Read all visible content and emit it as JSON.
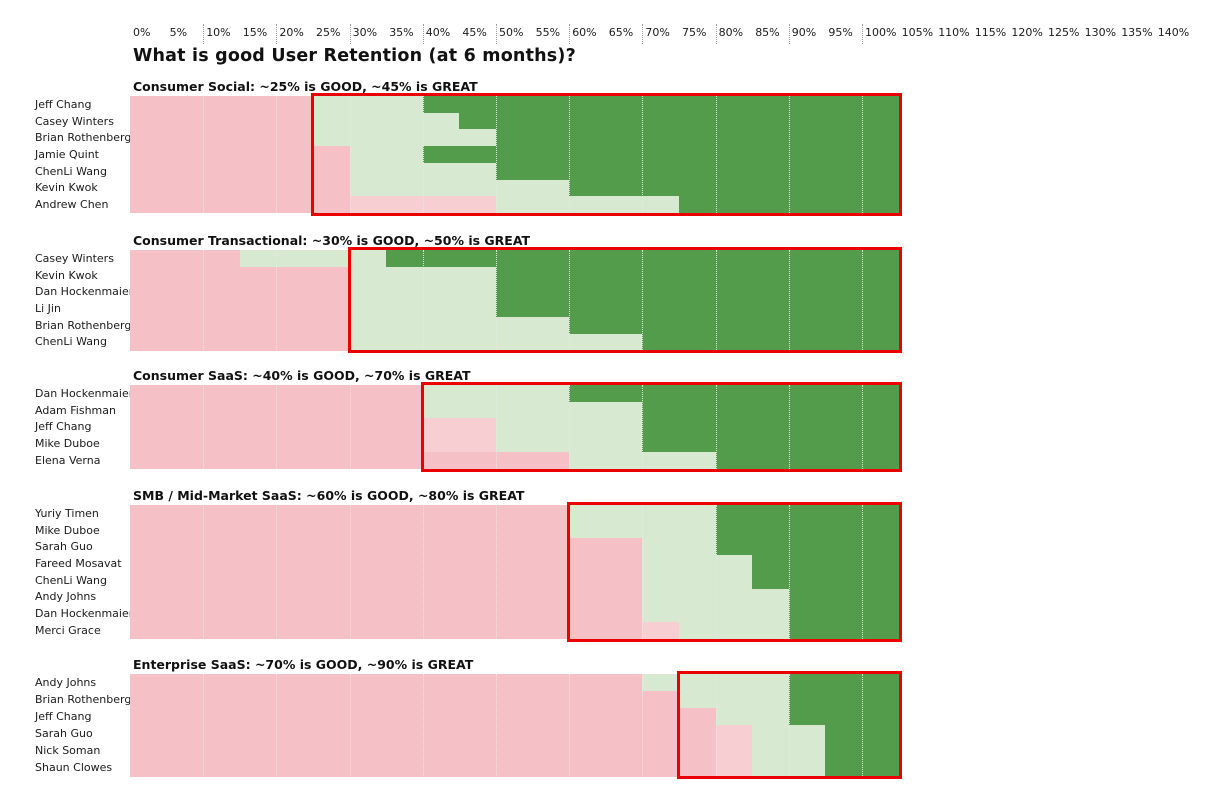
{
  "title": "What is good User Retention (at 6 months)?",
  "colors": {
    "pink": "#f5c0c6",
    "pink_light": "#f7cfd3",
    "good_green": "#d8e9d2",
    "great_green": "#539c4b",
    "highlight_red": "#eb0000",
    "text": "#1b1b1b"
  },
  "axis": {
    "tick_labels": [
      "0%",
      "5%",
      "10%",
      "15%",
      "20%",
      "25%",
      "30%",
      "35%",
      "40%",
      "45%",
      "50%",
      "55%",
      "60%",
      "65%",
      "70%",
      "75%",
      "80%",
      "85%",
      "90%",
      "95%",
      "100%",
      "105%",
      "110%",
      "115%",
      "120%",
      "125%",
      "130%",
      "135%",
      "140%"
    ],
    "tick_step_pct": 5,
    "gridline_pcts": [
      10,
      20,
      30,
      40,
      50,
      60,
      70,
      80,
      90,
      100
    ]
  },
  "chart_data": {
    "type": "bar",
    "orientation": "horizontal-stacked",
    "title": "What is good User Retention (at 6 months)?",
    "x_axis": {
      "min": 0,
      "max": 140,
      "unit": "%",
      "tick_step": 5,
      "grid_step": 10
    },
    "bar_extent_pct": 105,
    "segment_legend": {
      "pink": "below good retention",
      "pink_light": "below good retention (lighter shade)",
      "good": "good retention range (light green)",
      "great": "great retention (dark green)"
    },
    "groups": [
      {
        "label": "Consumer Social: ~25% is GOOD, ~45% is GREAT",
        "highlight_box": {
          "from_pct": 25,
          "to_pct": 105
        },
        "rows": [
          {
            "name": "Jeff Chang",
            "good_pct": 25,
            "great_pct": 40,
            "segments": [
              [
                "pink",
                0,
                25
              ],
              [
                "good",
                25,
                40
              ],
              [
                "great",
                40,
                105
              ]
            ]
          },
          {
            "name": "Casey Winters",
            "good_pct": 25,
            "great_pct": 45,
            "segments": [
              [
                "pink",
                0,
                25
              ],
              [
                "good",
                25,
                45
              ],
              [
                "great",
                45,
                105
              ]
            ]
          },
          {
            "name": "Brian Rothenberg",
            "good_pct": 25,
            "great_pct": 50,
            "segments": [
              [
                "pink",
                0,
                25
              ],
              [
                "good",
                25,
                50
              ],
              [
                "great",
                50,
                105
              ]
            ]
          },
          {
            "name": "Jamie Quint",
            "good_pct": 30,
            "great_pct": 40,
            "segments": [
              [
                "pink",
                0,
                30
              ],
              [
                "good",
                30,
                40
              ],
              [
                "great",
                40,
                105
              ]
            ]
          },
          {
            "name": "ChenLi Wang",
            "good_pct": 30,
            "great_pct": 50,
            "segments": [
              [
                "pink",
                0,
                30
              ],
              [
                "good",
                30,
                50
              ],
              [
                "great",
                50,
                105
              ]
            ]
          },
          {
            "name": "Kevin Kwok",
            "good_pct": 30,
            "great_pct": 60,
            "segments": [
              [
                "pink",
                0,
                30
              ],
              [
                "good",
                30,
                60
              ],
              [
                "great",
                60,
                105
              ]
            ]
          },
          {
            "name": "Andrew Chen",
            "good_pct": 50,
            "great_pct": 75,
            "segments": [
              [
                "pink",
                0,
                30
              ],
              [
                "pink_light",
                30,
                50
              ],
              [
                "good",
                50,
                75
              ],
              [
                "great",
                75,
                105
              ]
            ]
          }
        ]
      },
      {
        "label": "Consumer Transactional: ~30% is GOOD, ~50% is GREAT",
        "highlight_box": {
          "from_pct": 30,
          "to_pct": 105
        },
        "rows": [
          {
            "name": "Casey Winters",
            "good_pct": 15,
            "great_pct": 35,
            "segments": [
              [
                "pink",
                0,
                15
              ],
              [
                "good",
                15,
                35
              ],
              [
                "great",
                35,
                105
              ]
            ]
          },
          {
            "name": "Kevin Kwok",
            "good_pct": 30,
            "great_pct": 50,
            "segments": [
              [
                "pink",
                0,
                30
              ],
              [
                "good",
                30,
                50
              ],
              [
                "great",
                50,
                105
              ]
            ]
          },
          {
            "name": "Dan Hockenmaier",
            "good_pct": 30,
            "great_pct": 50,
            "segments": [
              [
                "pink",
                0,
                30
              ],
              [
                "good",
                30,
                50
              ],
              [
                "great",
                50,
                105
              ]
            ]
          },
          {
            "name": "Li Jin",
            "good_pct": 30,
            "great_pct": 50,
            "segments": [
              [
                "pink",
                0,
                30
              ],
              [
                "good",
                30,
                50
              ],
              [
                "great",
                50,
                105
              ]
            ]
          },
          {
            "name": "Brian Rothenberg",
            "good_pct": 30,
            "great_pct": 60,
            "segments": [
              [
                "pink",
                0,
                30
              ],
              [
                "good",
                30,
                60
              ],
              [
                "great",
                60,
                105
              ]
            ]
          },
          {
            "name": "ChenLi Wang",
            "good_pct": 30,
            "great_pct": 70,
            "segments": [
              [
                "pink",
                0,
                30
              ],
              [
                "good",
                30,
                70
              ],
              [
                "great",
                70,
                105
              ]
            ]
          }
        ]
      },
      {
        "label": "Consumer SaaS: ~40% is GOOD, ~70% is GREAT",
        "highlight_box": {
          "from_pct": 40,
          "to_pct": 105
        },
        "rows": [
          {
            "name": "Dan Hockenmaier",
            "good_pct": 40,
            "great_pct": 60,
            "segments": [
              [
                "pink",
                0,
                40
              ],
              [
                "good",
                40,
                60
              ],
              [
                "great",
                60,
                105
              ]
            ]
          },
          {
            "name": "Adam Fishman",
            "good_pct": 40,
            "great_pct": 70,
            "segments": [
              [
                "pink",
                0,
                40
              ],
              [
                "good",
                40,
                70
              ],
              [
                "great",
                70,
                105
              ]
            ]
          },
          {
            "name": "Jeff Chang",
            "good_pct": 50,
            "great_pct": 70,
            "segments": [
              [
                "pink",
                0,
                40
              ],
              [
                "pink_light",
                40,
                50
              ],
              [
                "good",
                50,
                70
              ],
              [
                "great",
                70,
                105
              ]
            ]
          },
          {
            "name": "Mike Duboe",
            "good_pct": 50,
            "great_pct": 70,
            "segments": [
              [
                "pink",
                0,
                40
              ],
              [
                "pink_light",
                40,
                50
              ],
              [
                "good",
                50,
                70
              ],
              [
                "great",
                70,
                105
              ]
            ]
          },
          {
            "name": "Elena Verna",
            "good_pct": 60,
            "great_pct": 80,
            "segments": [
              [
                "pink",
                0,
                60
              ],
              [
                "good",
                60,
                80
              ],
              [
                "great",
                80,
                105
              ]
            ]
          }
        ]
      },
      {
        "label": "SMB / Mid-Market SaaS: ~60% is GOOD, ~80% is GREAT",
        "highlight_box": {
          "from_pct": 60,
          "to_pct": 105
        },
        "rows": [
          {
            "name": "Yuriy Timen",
            "good_pct": 60,
            "great_pct": 80,
            "segments": [
              [
                "pink",
                0,
                60
              ],
              [
                "good",
                60,
                80
              ],
              [
                "great",
                80,
                105
              ]
            ]
          },
          {
            "name": "Mike Duboe",
            "good_pct": 60,
            "great_pct": 80,
            "segments": [
              [
                "pink",
                0,
                60
              ],
              [
                "good",
                60,
                80
              ],
              [
                "great",
                80,
                105
              ]
            ]
          },
          {
            "name": "Sarah Guo",
            "good_pct": 70,
            "great_pct": 80,
            "segments": [
              [
                "pink",
                0,
                70
              ],
              [
                "good",
                70,
                80
              ],
              [
                "great",
                80,
                105
              ]
            ]
          },
          {
            "name": "Fareed Mosavat",
            "good_pct": 70,
            "great_pct": 85,
            "segments": [
              [
                "pink",
                0,
                70
              ],
              [
                "good",
                70,
                85
              ],
              [
                "great",
                85,
                105
              ]
            ]
          },
          {
            "name": "ChenLi Wang",
            "good_pct": 70,
            "great_pct": 85,
            "segments": [
              [
                "pink",
                0,
                70
              ],
              [
                "good",
                70,
                85
              ],
              [
                "great",
                85,
                105
              ]
            ]
          },
          {
            "name": "Andy Johns",
            "good_pct": 70,
            "great_pct": 90,
            "segments": [
              [
                "pink",
                0,
                70
              ],
              [
                "good",
                70,
                90
              ],
              [
                "great",
                90,
                105
              ]
            ]
          },
          {
            "name": "Dan Hockenmaier",
            "good_pct": 70,
            "great_pct": 90,
            "segments": [
              [
                "pink",
                0,
                70
              ],
              [
                "good",
                70,
                90
              ],
              [
                "great",
                90,
                105
              ]
            ]
          },
          {
            "name": "Merci Grace",
            "good_pct": 75,
            "great_pct": 90,
            "segments": [
              [
                "pink",
                0,
                70
              ],
              [
                "pink_light",
                70,
                75
              ],
              [
                "good",
                75,
                90
              ],
              [
                "great",
                90,
                105
              ]
            ]
          }
        ]
      },
      {
        "label": "Enterprise SaaS: ~70% is GOOD, ~90% is GREAT",
        "highlight_box": {
          "from_pct": 75,
          "to_pct": 105
        },
        "rows": [
          {
            "name": "Andy Johns",
            "good_pct": 70,
            "great_pct": 90,
            "segments": [
              [
                "pink",
                0,
                70
              ],
              [
                "good",
                70,
                90
              ],
              [
                "great",
                90,
                105
              ]
            ]
          },
          {
            "name": "Brian Rothenberg",
            "good_pct": 75,
            "great_pct": 90,
            "segments": [
              [
                "pink",
                0,
                75
              ],
              [
                "good",
                75,
                90
              ],
              [
                "great",
                90,
                105
              ]
            ]
          },
          {
            "name": "Jeff Chang",
            "good_pct": 80,
            "great_pct": 90,
            "segments": [
              [
                "pink",
                0,
                80
              ],
              [
                "good",
                80,
                90
              ],
              [
                "great",
                90,
                105
              ]
            ]
          },
          {
            "name": "Sarah Guo",
            "good_pct": 85,
            "great_pct": 95,
            "segments": [
              [
                "pink",
                0,
                80
              ],
              [
                "pink_light",
                80,
                85
              ],
              [
                "good",
                85,
                95
              ],
              [
                "great",
                95,
                105
              ]
            ]
          },
          {
            "name": "Nick Soman",
            "good_pct": 85,
            "great_pct": 95,
            "segments": [
              [
                "pink",
                0,
                80
              ],
              [
                "pink_light",
                80,
                85
              ],
              [
                "good",
                85,
                95
              ],
              [
                "great",
                95,
                105
              ]
            ]
          },
          {
            "name": "Shaun Clowes",
            "good_pct": 85,
            "great_pct": 95,
            "segments": [
              [
                "pink",
                0,
                80
              ],
              [
                "pink_light",
                80,
                85
              ],
              [
                "good",
                85,
                95
              ],
              [
                "great",
                95,
                105
              ]
            ]
          }
        ]
      }
    ]
  }
}
